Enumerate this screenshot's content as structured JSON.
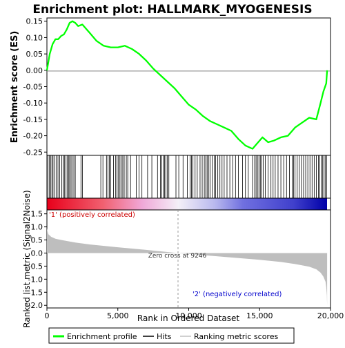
{
  "chart_data": {
    "type": "line",
    "title": "Enrichment plot: HALLMARK_MYOGENESIS",
    "top_panel": {
      "ylabel": "Enrichment score (ES)",
      "ylim": [
        -0.26,
        0.16
      ],
      "yticks": [
        "0.15",
        "0.10",
        "0.05",
        "0.00",
        "-0.05",
        "-0.10",
        "-0.15",
        "-0.20",
        "-0.25"
      ],
      "ytick_values": [
        0.15,
        0.1,
        0.05,
        0.0,
        -0.05,
        -0.1,
        -0.15,
        -0.2,
        -0.25
      ],
      "series": [
        {
          "name": "Enrichment profile",
          "color": "#00ff00",
          "x": [
            0,
            200,
            400,
            600,
            800,
            1000,
            1200,
            1400,
            1600,
            1800,
            2000,
            2200,
            2500,
            3000,
            3500,
            4000,
            4500,
            5000,
            5500,
            6000,
            6500,
            7000,
            7500,
            8000,
            8500,
            9000,
            9500,
            10000,
            10500,
            11000,
            11500,
            12000,
            12500,
            13000,
            13500,
            14000,
            14500,
            14800,
            15200,
            15600,
            16000,
            16500,
            17000,
            17500,
            18000,
            18500,
            19000,
            19300,
            19500,
            19700,
            19760
          ],
          "y": [
            0.0,
            0.05,
            0.08,
            0.095,
            0.095,
            0.105,
            0.11,
            0.125,
            0.145,
            0.15,
            0.145,
            0.135,
            0.14,
            0.115,
            0.09,
            0.075,
            0.07,
            0.07,
            0.075,
            0.065,
            0.05,
            0.03,
            0.005,
            -0.015,
            -0.035,
            -0.055,
            -0.08,
            -0.105,
            -0.12,
            -0.14,
            -0.155,
            -0.165,
            -0.175,
            -0.185,
            -0.21,
            -0.23,
            -0.24,
            -0.225,
            -0.205,
            -0.22,
            -0.215,
            -0.205,
            -0.2,
            -0.175,
            -0.16,
            -0.145,
            -0.15,
            -0.1,
            -0.065,
            -0.04,
            0.0
          ]
        }
      ]
    },
    "hits": [
      80,
      180,
      260,
      350,
      430,
      520,
      650,
      780,
      900,
      1050,
      1150,
      1230,
      1350,
      1450,
      1520,
      1600,
      1700,
      1780,
      1900,
      2000,
      2400,
      2500,
      3800,
      3950,
      4200,
      4300,
      4400,
      4500,
      4700,
      4850,
      4950,
      5050,
      5150,
      5250,
      5350,
      5450,
      5600,
      5700,
      5900,
      6300,
      6500,
      6700,
      7100,
      7400,
      7800,
      8000,
      8100,
      8200,
      8300,
      8400,
      8500,
      8600,
      9100,
      9300,
      9600,
      9900,
      10100,
      10200,
      10300,
      10450,
      10600,
      10800,
      10950,
      11100,
      11200,
      11300,
      11400,
      11500,
      11650,
      11800,
      11900,
      12050,
      12200,
      12350,
      12500,
      12700,
      12900,
      13100,
      13300,
      13500,
      13800,
      14000,
      14200,
      14500,
      14650,
      14750,
      14850,
      14950,
      15050,
      15150,
      15250,
      15400,
      15600,
      15800,
      15950,
      16100,
      16300,
      16500,
      16700,
      16900,
      17100,
      17300,
      17400,
      17500,
      17650,
      17800,
      17950,
      18100,
      18250,
      18400,
      18550,
      18700,
      18850,
      19000,
      19150,
      19250,
      19350,
      19450,
      19550,
      19650,
      19720
    ],
    "bottom_panel": {
      "ylabel": "Ranked list metric (Signal2Noise)",
      "ylim": [
        -2.1,
        1.65
      ],
      "yticks": [
        "1.5",
        "1.0",
        "0.5",
        "0.0",
        "-0.5",
        "-1.0",
        "-1.5",
        "-2.0"
      ],
      "ytick_values": [
        1.5,
        1.0,
        0.5,
        0.0,
        -0.5,
        -1.0,
        -1.5,
        -2.0
      ],
      "metric_x": [
        0,
        30,
        100,
        300,
        600,
        1000,
        2000,
        3000,
        5000,
        7000,
        9246,
        11000,
        13000,
        15000,
        16500,
        17500,
        18500,
        19000,
        19300,
        19500,
        19650,
        19700,
        19740,
        19760
      ],
      "metric_y": [
        0.95,
        0.85,
        0.72,
        0.62,
        0.55,
        0.5,
        0.4,
        0.33,
        0.22,
        0.12,
        0.0,
        -0.08,
        -0.17,
        -0.26,
        -0.34,
        -0.42,
        -0.52,
        -0.62,
        -0.75,
        -0.9,
        -1.1,
        -1.3,
        -1.6,
        -2.0
      ],
      "annotations": {
        "zero_cross": "Zero cross at 9246",
        "positive": "'1' (positively correlated)",
        "negative": "'2' (negatively correlated)"
      },
      "zero_cross_rank": 9246
    },
    "xaxis": {
      "xlabel": "Rank in Ordered Dataset",
      "xlim": [
        0,
        20000
      ],
      "xticks": [
        "0",
        "5,000",
        "10,000",
        "15,000",
        "20,000"
      ],
      "xtick_values": [
        0,
        5000,
        10000,
        15000,
        20000
      ],
      "n": 19760
    },
    "legend": {
      "placement": "bottom",
      "items": [
        {
          "label": "Enrichment profile",
          "color": "#00ff00"
        },
        {
          "label": "Hits",
          "color": "#000000"
        },
        {
          "label": "Ranking metric scores",
          "color": "#c0c0c0"
        }
      ]
    },
    "colors": {
      "profile": "#00ff00",
      "positive_text": "#cc0000",
      "negative_text": "#0000cc",
      "metric_fill": "#bebebe"
    }
  }
}
